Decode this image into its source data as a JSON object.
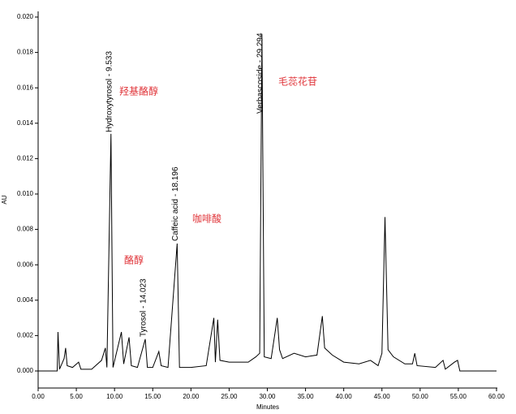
{
  "chart_data": {
    "type": "line",
    "x_label": "Minutes",
    "y_label": "AU",
    "xlim": [
      0,
      60
    ],
    "ylim": [
      0,
      0.0205
    ],
    "xticks": [
      {
        "value": 0,
        "label": "0.00"
      },
      {
        "value": 5,
        "label": "5.00"
      },
      {
        "value": 10,
        "label": "10.00"
      },
      {
        "value": 15,
        "label": "15.00"
      },
      {
        "value": 20,
        "label": "20.00"
      },
      {
        "value": 25,
        "label": "25.00"
      },
      {
        "value": 30,
        "label": "30.00"
      },
      {
        "value": 35,
        "label": "35.00"
      },
      {
        "value": 40,
        "label": "40.00"
      },
      {
        "value": 45,
        "label": "45.00"
      },
      {
        "value": 50,
        "label": "50.00"
      },
      {
        "value": 55,
        "label": "55.00"
      },
      {
        "value": 60,
        "label": "60.00"
      }
    ],
    "yticks": [
      {
        "value": 0,
        "label": "0.000"
      },
      {
        "value": 0.002,
        "label": "0.002"
      },
      {
        "value": 0.004,
        "label": "0.004"
      },
      {
        "value": 0.006,
        "label": "0.006"
      },
      {
        "value": 0.008,
        "label": "0.008"
      },
      {
        "value": 0.01,
        "label": "0.010"
      },
      {
        "value": 0.012,
        "label": "0.012"
      },
      {
        "value": 0.014,
        "label": "0.014"
      },
      {
        "value": 0.016,
        "label": "0.016"
      },
      {
        "value": 0.018,
        "label": "0.018"
      },
      {
        "value": 0.02,
        "label": "0.020"
      }
    ],
    "color": "#000000",
    "x": [
      0,
      2.5,
      2.6,
      2.8,
      3.4,
      3.6,
      3.8,
      4.5,
      5.3,
      5.6,
      7,
      8.3,
      8.8,
      9.0,
      9.533,
      9.8,
      10.9,
      11.2,
      11.9,
      12.2,
      13,
      14.023,
      14.3,
      15.0,
      15.8,
      16.1,
      17,
      18.196,
      18.5,
      20,
      22,
      23,
      23.2,
      23.5,
      23.8,
      25,
      27.5,
      28.5,
      29.0,
      29.294,
      29.6,
      30.5,
      31.3,
      31.6,
      32,
      33.5,
      35,
      36.5,
      37.2,
      37.5,
      38.5,
      40,
      42,
      43.5,
      44.5,
      45.0,
      45.4,
      45.8,
      46.5,
      48,
      49,
      49.3,
      49.6,
      52,
      53,
      53.3,
      54.5,
      54.9,
      55.2,
      60
    ],
    "y": [
      0,
      0,
      0.0022,
      0.0001,
      0.0007,
      0.0013,
      0.0003,
      0.0002,
      0.0005,
      0.0001,
      0.0001,
      0.0006,
      0.0013,
      0.0002,
      0.0134,
      0.0002,
      0.0022,
      0.0004,
      0.0019,
      0.0003,
      0.0002,
      0.0018,
      0.0002,
      0.0002,
      0.0011,
      0.0003,
      0.0002,
      0.0072,
      0.0002,
      0.0002,
      0.0003,
      0.003,
      0.0005,
      0.0029,
      0.0006,
      0.0005,
      0.0005,
      0.0008,
      0.001,
      0.019,
      0.0008,
      0.0007,
      0.003,
      0.0012,
      0.0007,
      0.001,
      0.0008,
      0.0009,
      0.0031,
      0.0013,
      0.0009,
      0.0005,
      0.0004,
      0.0006,
      0.0003,
      0.001,
      0.0087,
      0.0012,
      0.0008,
      0.0004,
      0.0004,
      0.001,
      0.0003,
      0.0002,
      0.0006,
      0.0001,
      0.0005,
      0.0006,
      0,
      0
    ],
    "peaks": [
      {
        "label": "Hydroxytyrosol - 9.533",
        "x": 9.533
      },
      {
        "label": "Tyrosol - 14.023",
        "x": 14.023
      },
      {
        "label": "Caffeic acid - 18.196",
        "x": 18.196
      },
      {
        "label": "Verbascoside - 29.294",
        "x": 29.294
      }
    ],
    "annotations": [
      "羟基酪醇",
      "酪醇",
      "咖啡酸",
      "毛蕊花苷"
    ]
  }
}
